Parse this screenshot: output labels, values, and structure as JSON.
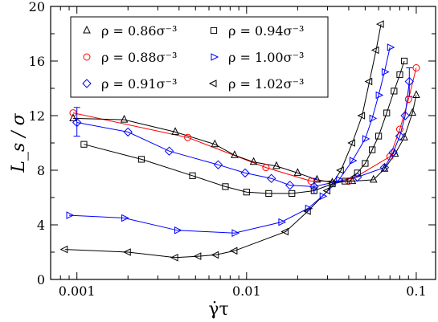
{
  "chart_data": {
    "type": "scatter",
    "title": "",
    "xlabel": "γ̇τ",
    "ylabel": "L_s / σ",
    "x_scale": "log",
    "xlim": [
      0.0007,
      0.13
    ],
    "ylim": [
      0,
      20
    ],
    "x_ticks": [
      {
        "value": 0.001,
        "label": "0.001"
      },
      {
        "value": 0.01,
        "label": "0.01"
      },
      {
        "value": 0.1,
        "label": "0.1"
      }
    ],
    "y_ticks": [
      {
        "value": 0,
        "label": "0"
      },
      {
        "value": 4,
        "label": "4"
      },
      {
        "value": 8,
        "label": "8"
      },
      {
        "value": 12,
        "label": "12"
      },
      {
        "value": 16,
        "label": "16"
      },
      {
        "value": 20,
        "label": "20"
      }
    ],
    "grid": false,
    "legend_position": "top-left",
    "series": [
      {
        "name": "ρ = 0.86σ⁻³",
        "color": "#000000",
        "marker": "triangle-up",
        "x": [
          0.00095,
          0.0019,
          0.0038,
          0.0065,
          0.0085,
          0.011,
          0.015,
          0.02,
          0.026,
          0.032,
          0.042,
          0.056,
          0.065,
          0.075,
          0.085,
          0.095,
          0.1
        ],
        "y": [
          11.8,
          11.7,
          10.8,
          9.9,
          9.1,
          8.6,
          8.3,
          7.8,
          7.3,
          7.1,
          7.2,
          7.3,
          8.1,
          9.2,
          10.4,
          12.2,
          13.5
        ]
      },
      {
        "name": "ρ = 0.88σ⁻³",
        "color": "#ff0000",
        "marker": "circle",
        "x": [
          0.00095,
          0.0045,
          0.013,
          0.024,
          0.04,
          0.07,
          0.08,
          0.09,
          0.1
        ],
        "y": [
          12.2,
          10.4,
          8.2,
          7.2,
          7.2,
          9.0,
          11.0,
          13.2,
          15.5
        ]
      },
      {
        "name": "ρ = 0.91σ⁻³",
        "color": "#0000ff",
        "marker": "diamond",
        "x": [
          0.001,
          0.002,
          0.0035,
          0.0068,
          0.0098,
          0.014,
          0.018,
          0.025,
          0.045,
          0.065,
          0.073,
          0.08,
          0.086,
          0.091
        ],
        "y": [
          11.5,
          10.8,
          9.4,
          8.4,
          7.8,
          7.4,
          6.9,
          6.8,
          7.5,
          8.2,
          9.3,
          10.5,
          12.0,
          14.5
        ],
        "error_bars": [
          {
            "x": 0.001,
            "lo": 10.5,
            "hi": 12.6
          },
          {
            "x": 0.025,
            "lo": 6.3,
            "hi": 7.4
          },
          {
            "x": 0.091,
            "lo": 13.4,
            "hi": 15.5
          }
        ]
      },
      {
        "name": "ρ = 0.94σ⁻³",
        "color": "#000000",
        "marker": "square",
        "x": [
          0.0011,
          0.0024,
          0.0048,
          0.0075,
          0.01,
          0.0135,
          0.0185,
          0.025,
          0.032,
          0.038,
          0.045,
          0.05,
          0.055,
          0.06,
          0.067,
          0.074,
          0.08,
          0.085
        ],
        "y": [
          9.9,
          8.8,
          7.6,
          6.8,
          6.4,
          6.3,
          6.3,
          6.5,
          7.0,
          7.2,
          7.8,
          8.5,
          9.5,
          10.5,
          12.2,
          13.8,
          15.0,
          16.0
        ]
      },
      {
        "name": "ρ = 1.00σ⁻³",
        "color": "#0000ff",
        "marker": "triangle-right",
        "x": [
          0.0009,
          0.0019,
          0.0039,
          0.0085,
          0.016,
          0.023,
          0.028,
          0.035,
          0.042,
          0.05,
          0.055,
          0.06,
          0.065,
          0.07
        ],
        "y": [
          4.7,
          4.5,
          3.6,
          3.4,
          4.2,
          5.2,
          6.1,
          7.3,
          8.7,
          10.3,
          11.8,
          13.5,
          15.2,
          17.0
        ]
      },
      {
        "name": "ρ = 1.02σ⁻³",
        "color": "#000000",
        "marker": "triangle-left",
        "x": [
          0.00085,
          0.002,
          0.0038,
          0.0052,
          0.0066,
          0.0085,
          0.017,
          0.023,
          0.03,
          0.036,
          0.042,
          0.048,
          0.053,
          0.058,
          0.062
        ],
        "y": [
          2.2,
          2.0,
          1.6,
          1.7,
          1.8,
          2.1,
          3.5,
          5.0,
          6.5,
          8.0,
          10.0,
          12.0,
          14.5,
          16.8,
          18.7
        ]
      }
    ]
  }
}
